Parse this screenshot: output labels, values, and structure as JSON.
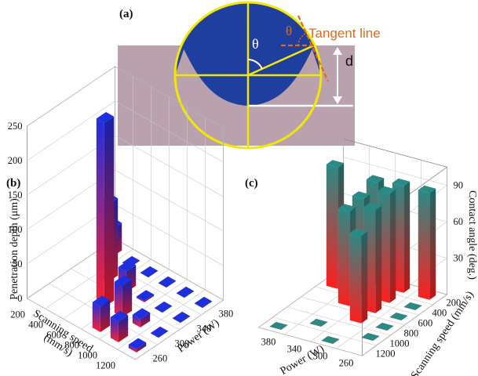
{
  "figure": {
    "panel_a": {
      "label": "(a)",
      "theta_label": "θ",
      "theta_small_label": "θ",
      "tangent_label": "Tangent line",
      "depth_label": "d",
      "colors": {
        "substrate": "#b9a1ad",
        "droplet": "#1f3f9e",
        "circle": "#f2e800",
        "tangent": "#e06a1b",
        "depth_line": "#ffffff"
      }
    }
  },
  "chart_data": [
    {
      "type": "bar3d",
      "panel_label": "(b)",
      "zlabel": "Penetration depth (μm)",
      "xlabel_line1": "Scanning speed",
      "xlabel_line2": "(mm/s)",
      "ylabel": "Power (W)",
      "x_ticks": [
        "200",
        "400",
        "600",
        "800",
        "1000",
        "1200"
      ],
      "y_ticks": [
        "260",
        "300",
        "340",
        "380"
      ],
      "z_ticks": [
        "0",
        "50",
        "100",
        "150",
        "200",
        "250"
      ],
      "zlim": [
        0,
        250
      ],
      "bars": [
        {
          "speed": 200,
          "power": 380,
          "value": 40
        },
        {
          "speed": 400,
          "power": 380,
          "value": 0
        },
        {
          "speed": 600,
          "power": 380,
          "value": 0
        },
        {
          "speed": 800,
          "power": 380,
          "value": 0
        },
        {
          "speed": 1000,
          "power": 380,
          "value": 0
        },
        {
          "speed": 1200,
          "power": 380,
          "value": 0
        },
        {
          "speed": 400,
          "power": 340,
          "value": 112
        },
        {
          "speed": 600,
          "power": 340,
          "value": 30
        },
        {
          "speed": 800,
          "power": 340,
          "value": 2
        },
        {
          "speed": 1000,
          "power": 340,
          "value": 0
        },
        {
          "speed": 1200,
          "power": 340,
          "value": 0
        },
        {
          "speed": 600,
          "power": 300,
          "value": 267
        },
        {
          "speed": 800,
          "power": 300,
          "value": 45
        },
        {
          "speed": 1000,
          "power": 300,
          "value": 12
        },
        {
          "speed": 1200,
          "power": 300,
          "value": 0
        },
        {
          "speed": 800,
          "power": 260,
          "value": 37
        },
        {
          "speed": 1000,
          "power": 260,
          "value": 30
        },
        {
          "speed": 1200,
          "power": 260,
          "value": 5
        }
      ],
      "colors": {
        "top": "#1e2fe0",
        "bottom": "#ff2030"
      }
    },
    {
      "type": "bar3d",
      "panel_label": "(c)",
      "zlabel": "Contact angle (deg.)",
      "xlabel": "Power (W)",
      "ylabel": "Scanning speed (mm/s)",
      "x_ticks": [
        "380",
        "340",
        "300",
        "260"
      ],
      "y_ticks": [
        "200",
        "400",
        "600",
        "800",
        "1000",
        "1200"
      ],
      "z_ticks": [
        "30",
        "60",
        "90"
      ],
      "zlim": [
        0,
        105
      ],
      "bars": [
        {
          "power": 380,
          "speed": 400,
          "value": 100
        },
        {
          "power": 340,
          "speed": 200,
          "value": 85
        },
        {
          "power": 340,
          "speed": 400,
          "value": 80
        },
        {
          "power": 340,
          "speed": 600,
          "value": 78
        },
        {
          "power": 300,
          "speed": 200,
          "value": 88
        },
        {
          "power": 300,
          "speed": 400,
          "value": 90
        },
        {
          "power": 300,
          "speed": 600,
          "value": 85
        },
        {
          "power": 300,
          "speed": 800,
          "value": 72
        },
        {
          "power": 260,
          "speed": 200,
          "value": 88
        },
        {
          "power": 260,
          "speed": 400,
          "value": 0
        },
        {
          "power": 260,
          "speed": 600,
          "value": 0
        },
        {
          "power": 260,
          "speed": 800,
          "value": 0
        },
        {
          "power": 260,
          "speed": 1000,
          "value": 0
        },
        {
          "power": 340,
          "speed": 1000,
          "value": 0
        },
        {
          "power": 380,
          "speed": 1200,
          "value": 0
        },
        {
          "power": 300,
          "speed": 1200,
          "value": 0
        }
      ],
      "colors": {
        "top": "#2a8a86",
        "bottom": "#ff1e1e",
        "floor_marker": "#2a8a86"
      }
    }
  ]
}
